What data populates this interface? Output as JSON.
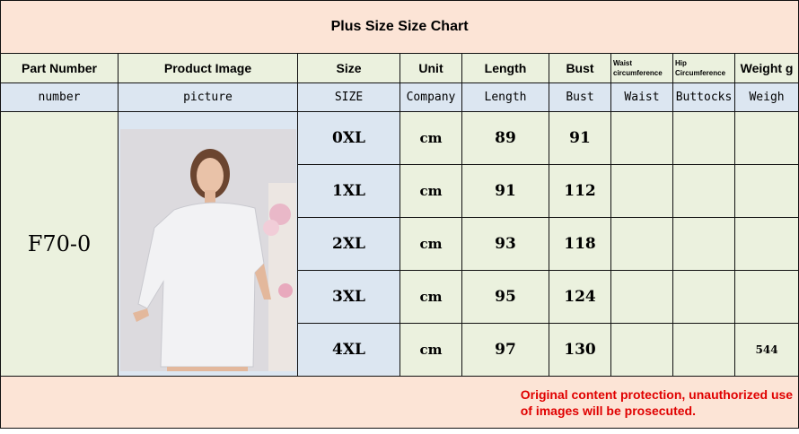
{
  "title": "Plus Size Size Chart",
  "headers": [
    "Part Number",
    "Product Image",
    "Size",
    "Unit",
    "Length",
    "Bust",
    "Waist circumference",
    "Hip Circumference",
    "Weight g"
  ],
  "subheaders": [
    "number",
    "picture",
    "SIZE",
    "Company",
    "Length",
    "Bust",
    "Waist",
    "Buttocks",
    "Weigh"
  ],
  "part_number": "F70-0",
  "rows": [
    {
      "size": "0XL",
      "unit": "cm",
      "length": "89",
      "bust": "91",
      "waist": "",
      "hip": "",
      "weight": ""
    },
    {
      "size": "1XL",
      "unit": "cm",
      "length": "91",
      "bust": "112",
      "waist": "",
      "hip": "",
      "weight": ""
    },
    {
      "size": "2XL",
      "unit": "cm",
      "length": "93",
      "bust": "118",
      "waist": "",
      "hip": "",
      "weight": ""
    },
    {
      "size": "3XL",
      "unit": "cm",
      "length": "95",
      "bust": "124",
      "waist": "",
      "hip": "",
      "weight": ""
    },
    {
      "size": "4XL",
      "unit": "cm",
      "length": "97",
      "bust": "130",
      "waist": "",
      "hip": "",
      "weight": "544"
    }
  ],
  "notice": [
    "Original content protection, unauthorized use",
    "of images will be prosecuted."
  ]
}
